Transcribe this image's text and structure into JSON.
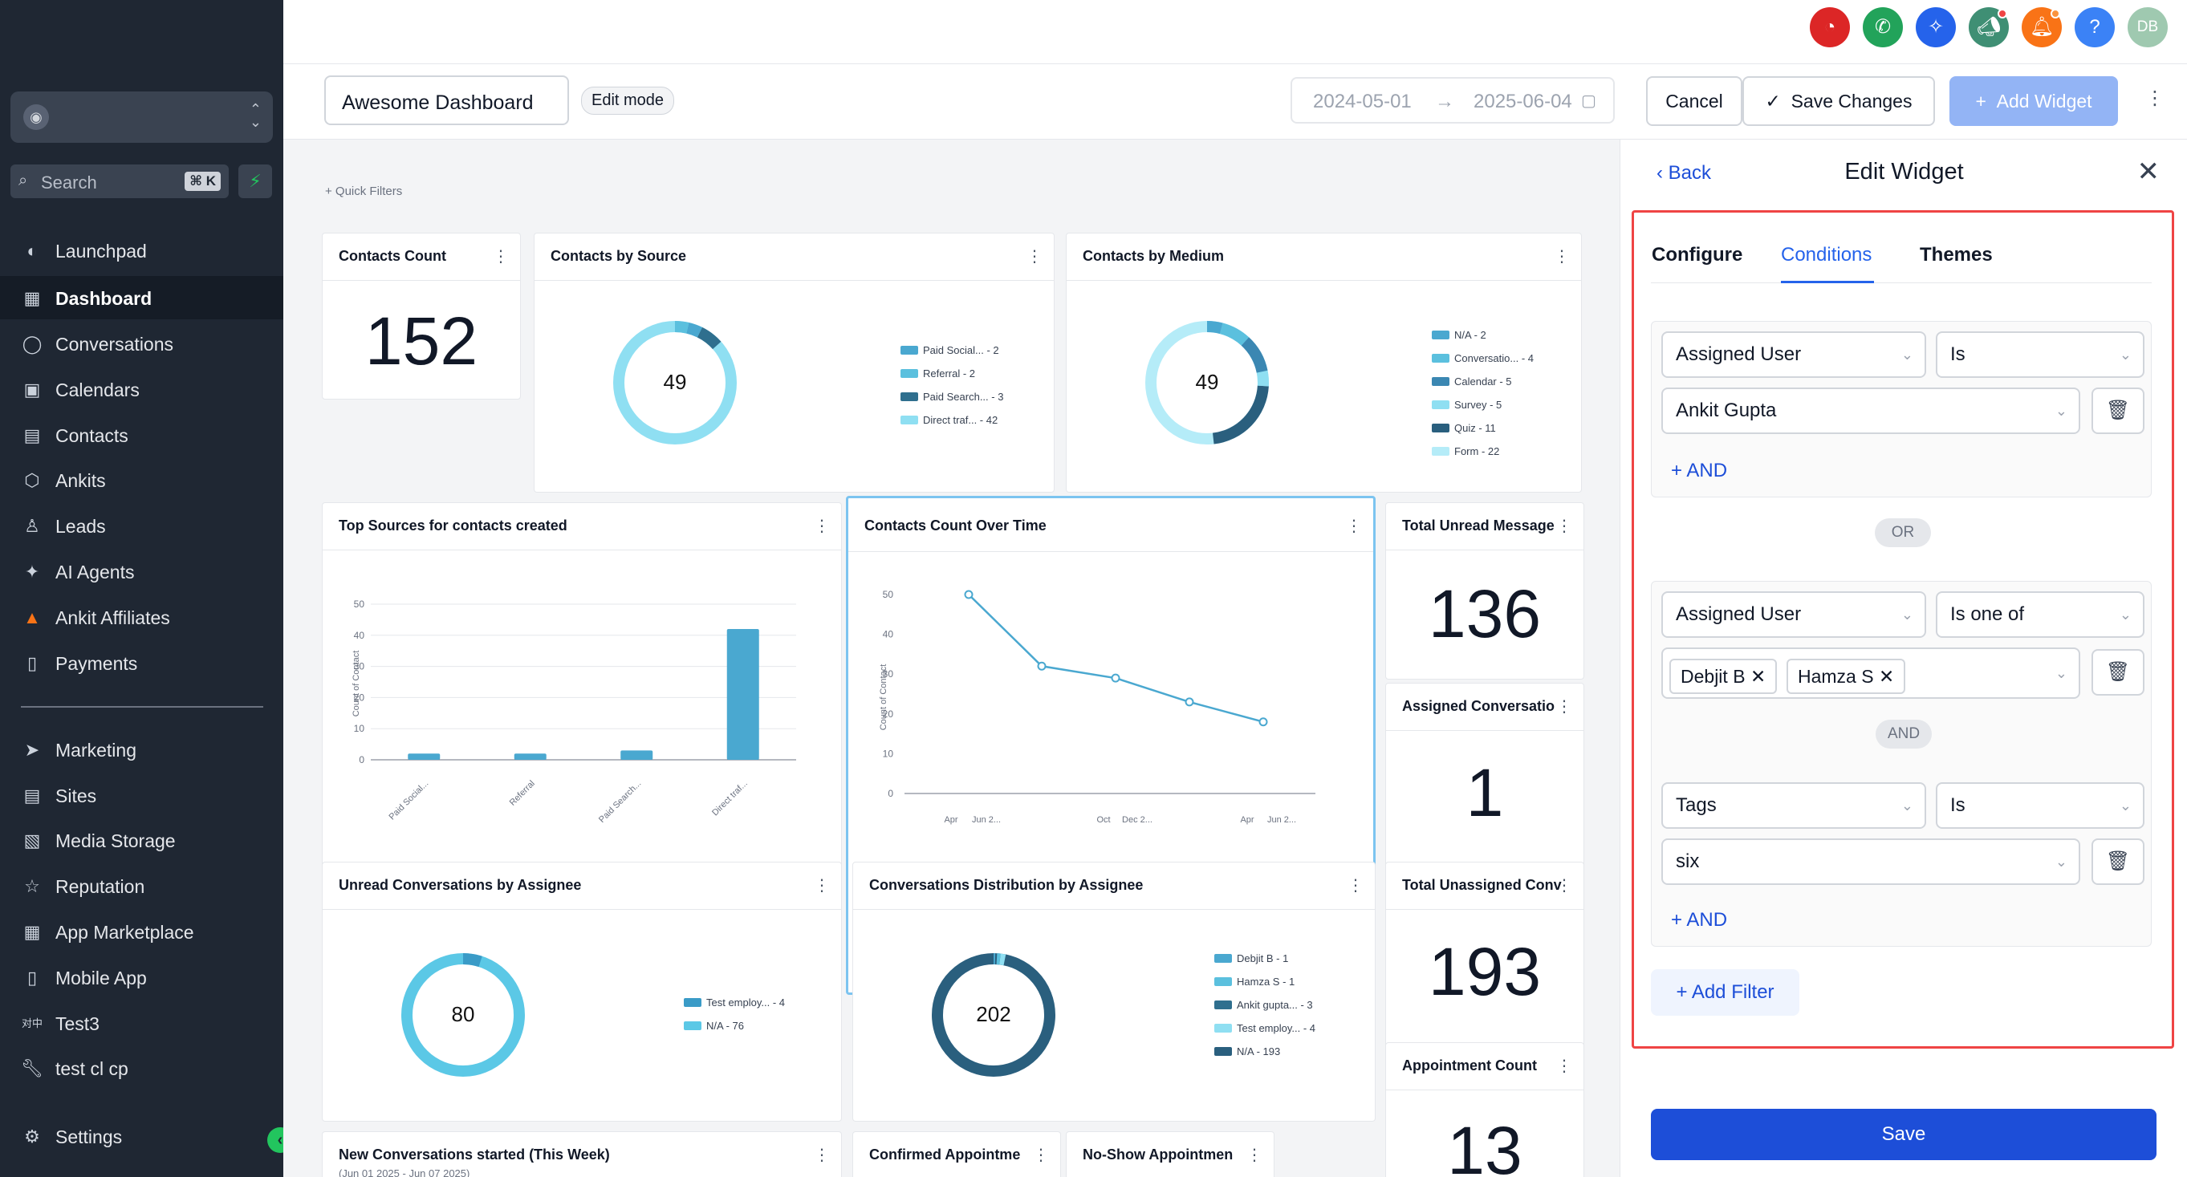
{
  "sidebar": {
    "search_label": "Search",
    "search_shortcut": "⌘ K",
    "items": [
      {
        "label": "Launchpad",
        "icon": "rocket-icon"
      },
      {
        "label": "Dashboard",
        "icon": "grid-icon"
      },
      {
        "label": "Conversations",
        "icon": "chat-icon"
      },
      {
        "label": "Calendars",
        "icon": "calendar-icon"
      },
      {
        "label": "Contacts",
        "icon": "contacts-icon"
      },
      {
        "label": "Ankits",
        "icon": "cube-icon"
      },
      {
        "label": "Leads",
        "icon": "user-icon"
      },
      {
        "label": "AI Agents",
        "icon": "sparkle-icon"
      },
      {
        "label": "Ankit Affiliates",
        "icon": "triangle-icon"
      },
      {
        "label": "Payments",
        "icon": "receipt-icon"
      }
    ],
    "items2": [
      {
        "label": "Marketing",
        "icon": "send-icon"
      },
      {
        "label": "Sites",
        "icon": "sites-icon"
      },
      {
        "label": "Media Storage",
        "icon": "image-icon"
      },
      {
        "label": "Reputation",
        "icon": "star-icon"
      },
      {
        "label": "App Marketplace",
        "icon": "apps-icon"
      },
      {
        "label": "Mobile App",
        "icon": "mobile-icon"
      },
      {
        "label": "Test3",
        "icon": "text-icon"
      },
      {
        "label": "test cl cp",
        "icon": "wrench-icon"
      }
    ],
    "settings_label": "Settings",
    "text_icon_glyph": "对中"
  },
  "topbar": {
    "avatar_initials": "DB"
  },
  "header": {
    "dashboard_name": "Awesome Dashboard",
    "edit_mode": "Edit mode",
    "date_start": "2024-05-01",
    "date_end": "2025-06-04",
    "cancel": "Cancel",
    "save_changes": "Save Changes",
    "add_widget": "Add Widget"
  },
  "canvas": {
    "quick_filters": "+ Quick Filters"
  },
  "widgets": {
    "contacts_count": {
      "title": "Contacts Count",
      "value": "152"
    },
    "contacts_by_source": {
      "title": "Contacts by Source",
      "total": "49",
      "legend": [
        "Paid Social... - 2",
        "Referral - 2",
        "Paid Search... - 3",
        "Direct traf... - 42"
      ]
    },
    "contacts_by_medium": {
      "title": "Contacts by Medium",
      "total": "49",
      "legend": [
        "N/A - 2",
        "Conversatio... - 4",
        "Calendar - 5",
        "Survey - 5",
        "Quiz - 11",
        "Form - 22"
      ]
    },
    "top_sources": {
      "title": "Top Sources for contacts created"
    },
    "count_over_time": {
      "title": "Contacts Count Over Time"
    },
    "total_unread": {
      "title": "Total Unread Message",
      "value": "136"
    },
    "assigned_conv": {
      "title": "Assigned Conversatio",
      "value": "1"
    },
    "unread_by_assignee": {
      "title": "Unread Conversations by Assignee",
      "total": "80",
      "legend": [
        "Test employ... - 4",
        "N/A - 76"
      ]
    },
    "conv_distribution": {
      "title": "Conversations Distribution by Assignee",
      "total": "202",
      "legend": [
        "Debjit B - 1",
        "Hamza S - 1",
        "Ankit gupta... - 3",
        "Test employ... - 4",
        "N/A - 193"
      ]
    },
    "total_unassigned": {
      "title": "Total Unassigned Conv",
      "value": "193"
    },
    "appointment_count": {
      "title": "Appointment Count",
      "value": "13"
    },
    "new_conversations": {
      "title": "New Conversations started (This Week)",
      "subtitle": "(Jun 01 2025 - Jun 07 2025)"
    },
    "confirmed_appt": {
      "title": "Confirmed Appointme"
    },
    "noshow_appt": {
      "title": "No-Show Appointmen"
    }
  },
  "chart_data": [
    {
      "type": "bar",
      "title": "Top Sources for contacts created",
      "categories": [
        "Paid Social...",
        "Referral",
        "Paid Search...",
        "Direct traf..."
      ],
      "values": [
        2,
        2,
        3,
        42
      ],
      "ylabel": "Count of Contact",
      "ylim": [
        0,
        50
      ],
      "yticks": [
        0,
        10,
        20,
        30,
        40,
        50
      ]
    },
    {
      "type": "line",
      "title": "Contacts Count Over Time",
      "values": [
        50,
        32,
        29,
        23,
        18
      ],
      "xticks": [
        "Apr",
        "Jun 2...",
        "Oct",
        "Dec 2...",
        "Apr",
        "Jun 2..."
      ],
      "ylabel": "Count of Contact",
      "ylim": [
        0,
        50
      ],
      "yticks": [
        0,
        10,
        20,
        30,
        40,
        50
      ]
    }
  ],
  "panel": {
    "back": "Back",
    "title": "Edit Widget",
    "tabs": [
      "Configure",
      "Conditions",
      "Themes"
    ],
    "group1": {
      "field": "Assigned User",
      "op": "Is",
      "value": "Ankit Gupta",
      "and": "AND"
    },
    "or_label": "OR",
    "group2": {
      "field": "Assigned User",
      "op": "Is one of",
      "chips": [
        "Debjit B",
        "Hamza S"
      ],
      "and_pill": "AND",
      "field2": "Tags",
      "op2": "Is",
      "value2": "six",
      "and": "AND"
    },
    "add_filter": "Add Filter",
    "save": "Save"
  },
  "colors": {
    "primary": "#1d4ed8",
    "accent_red": "#ef4444",
    "sidebar_bg": "#1f2733"
  }
}
